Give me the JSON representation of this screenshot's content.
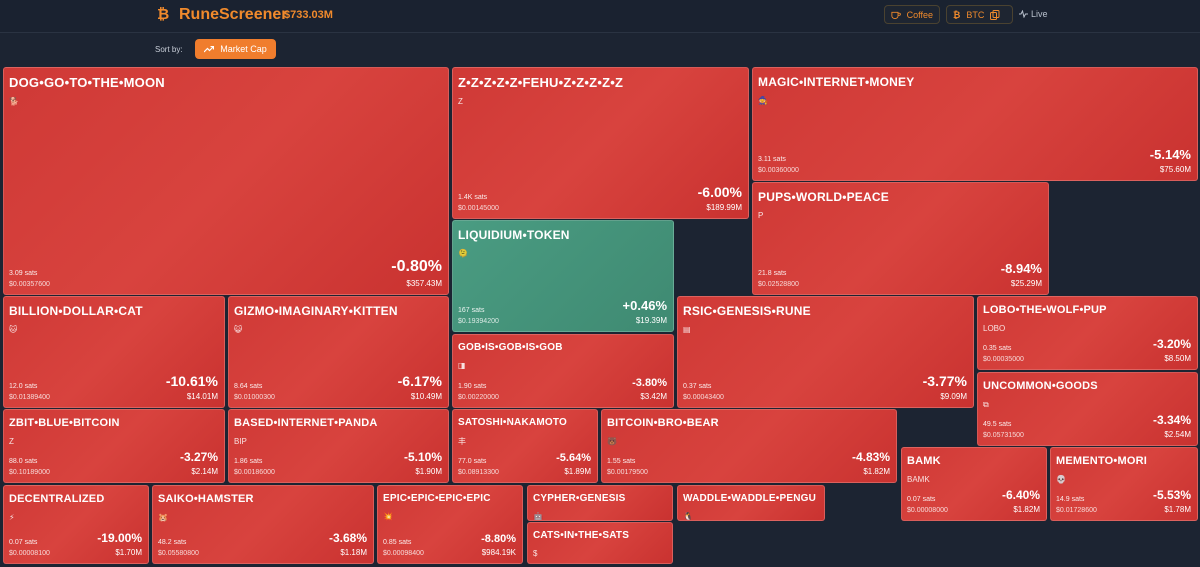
{
  "header": {
    "app_name": "RuneScreener",
    "total_market_cap": "$733.03M",
    "coffee_label": "Coffee",
    "currency_label": "BTC",
    "live_label": "Live",
    "accent_color": "#f08a2c"
  },
  "sort": {
    "label": "Sort by:",
    "button_label": "Market Cap"
  },
  "runes": [
    {
      "name": "DOG•GO•TO•THE•MOON",
      "symbol": "🐕",
      "sats": "3.09 sats",
      "price": "$0.00357600",
      "change": "-0.80%",
      "cap": "$357.43M",
      "trend": "down"
    },
    {
      "name": "Z•Z•Z•Z•Z•FEHU•Z•Z•Z•Z•Z",
      "symbol": "Z",
      "sats": "1.4K sats",
      "price": "$0.00145000",
      "change": "-6.00%",
      "cap": "$189.99M",
      "trend": "down"
    },
    {
      "name": "MAGIC•INTERNET•MONEY",
      "symbol": "🧙",
      "sats": "3.11 sats",
      "price": "$0.00360000",
      "change": "-5.14%",
      "cap": "$75.60M",
      "trend": "down"
    },
    {
      "name": "PUPS•WORLD•PEACE",
      "symbol": "P",
      "sats": "21.8 sats",
      "price": "$0.02528800",
      "change": "-8.94%",
      "cap": "$25.29M",
      "trend": "down"
    },
    {
      "name": "LIQUIDIUM•TOKEN",
      "symbol": "🫠",
      "sats": "167 sats",
      "price": "$0.19394200",
      "change": "+0.46%",
      "cap": "$19.39M",
      "trend": "up"
    },
    {
      "name": "BILLION•DOLLAR•CAT",
      "symbol": "🐱",
      "sats": "12.0 sats",
      "price": "$0.01389400",
      "change": "-10.61%",
      "cap": "$14.01M",
      "trend": "down"
    },
    {
      "name": "GIZMO•IMAGINARY•KITTEN",
      "symbol": "😺",
      "sats": "8.64 sats",
      "price": "$0.01000300",
      "change": "-6.17%",
      "cap": "$10.49M",
      "trend": "down"
    },
    {
      "name": "GOB•IS•GOB•IS•GOB",
      "symbol": "◨",
      "sats": "1.90 sats",
      "price": "$0.00220000",
      "change": "-3.80%",
      "cap": "$3.42M",
      "trend": "down"
    },
    {
      "name": "RSIC•GENESIS•RUNE",
      "symbol": "▤",
      "sats": "0.37 sats",
      "price": "$0.00043400",
      "change": "-3.77%",
      "cap": "$9.09M",
      "trend": "down"
    },
    {
      "name": "LOBO•THE•WOLF•PUP",
      "symbol": "LOBO",
      "sats": "0.35 sats",
      "price": "$0.00035000",
      "change": "-3.20%",
      "cap": "$8.50M",
      "trend": "down"
    },
    {
      "name": "UNCOMMON•GOODS",
      "symbol": "⧉",
      "sats": "49.5 sats",
      "price": "$0.05731500",
      "change": "-3.34%",
      "cap": "$2.54M",
      "trend": "down"
    },
    {
      "name": "ZBIT•BLUE•BITCOIN",
      "symbol": "Z",
      "sats": "88.0 sats",
      "price": "$0.10189000",
      "change": "-3.27%",
      "cap": "$2.14M",
      "trend": "down"
    },
    {
      "name": "BASED•INTERNET•PANDA",
      "symbol": "BIP",
      "sats": "1.86 sats",
      "price": "$0.00186000",
      "change": "-5.10%",
      "cap": "$1.90M",
      "trend": "down"
    },
    {
      "name": "SATOSHI•NAKAMOTO",
      "symbol": "丰",
      "sats": "77.0 sats",
      "price": "$0.08913300",
      "change": "-5.64%",
      "cap": "$1.89M",
      "trend": "down"
    },
    {
      "name": "BITCOIN•BRO•BEAR",
      "symbol": "🐻",
      "sats": "1.55 sats",
      "price": "$0.00179500",
      "change": "-4.83%",
      "cap": "$1.82M",
      "trend": "down"
    },
    {
      "name": "BAMK",
      "symbol": "BAMK",
      "sats": "0.07 sats",
      "price": "$0.00008000",
      "change": "-6.40%",
      "cap": "$1.82M",
      "trend": "down"
    },
    {
      "name": "MEMENTO•MORI",
      "symbol": "💀",
      "sats": "14.9 sats",
      "price": "$0.01728600",
      "change": "-5.53%",
      "cap": "$1.78M",
      "trend": "down"
    },
    {
      "name": "DECENTRALIZED",
      "symbol": "⚡",
      "sats": "0.07 sats",
      "price": "$0.00008100",
      "change": "-19.00%",
      "cap": "$1.70M",
      "trend": "down"
    },
    {
      "name": "SAIKO•HAMSTER",
      "symbol": "🐹",
      "sats": "48.2 sats",
      "price": "$0.05580800",
      "change": "-3.68%",
      "cap": "$1.18M",
      "trend": "down"
    },
    {
      "name": "EPIC•EPIC•EPIC•EPIC",
      "symbol": "💥",
      "sats": "0.85 sats",
      "price": "$0.00098400",
      "change": "-8.80%",
      "cap": "$984.19K",
      "trend": "down"
    },
    {
      "name": "CYPHER•GENESIS",
      "symbol": "🤖",
      "sats": "",
      "price": "",
      "change": "",
      "cap": "",
      "trend": "down"
    },
    {
      "name": "WADDLE•WADDLE•PENGU",
      "symbol": "🐧",
      "sats": "",
      "price": "",
      "change": "",
      "cap": "",
      "trend": "down"
    },
    {
      "name": "CATS•IN•THE•SATS",
      "symbol": "$",
      "sats": "",
      "price": "",
      "change": "",
      "cap": "",
      "trend": "down"
    }
  ]
}
